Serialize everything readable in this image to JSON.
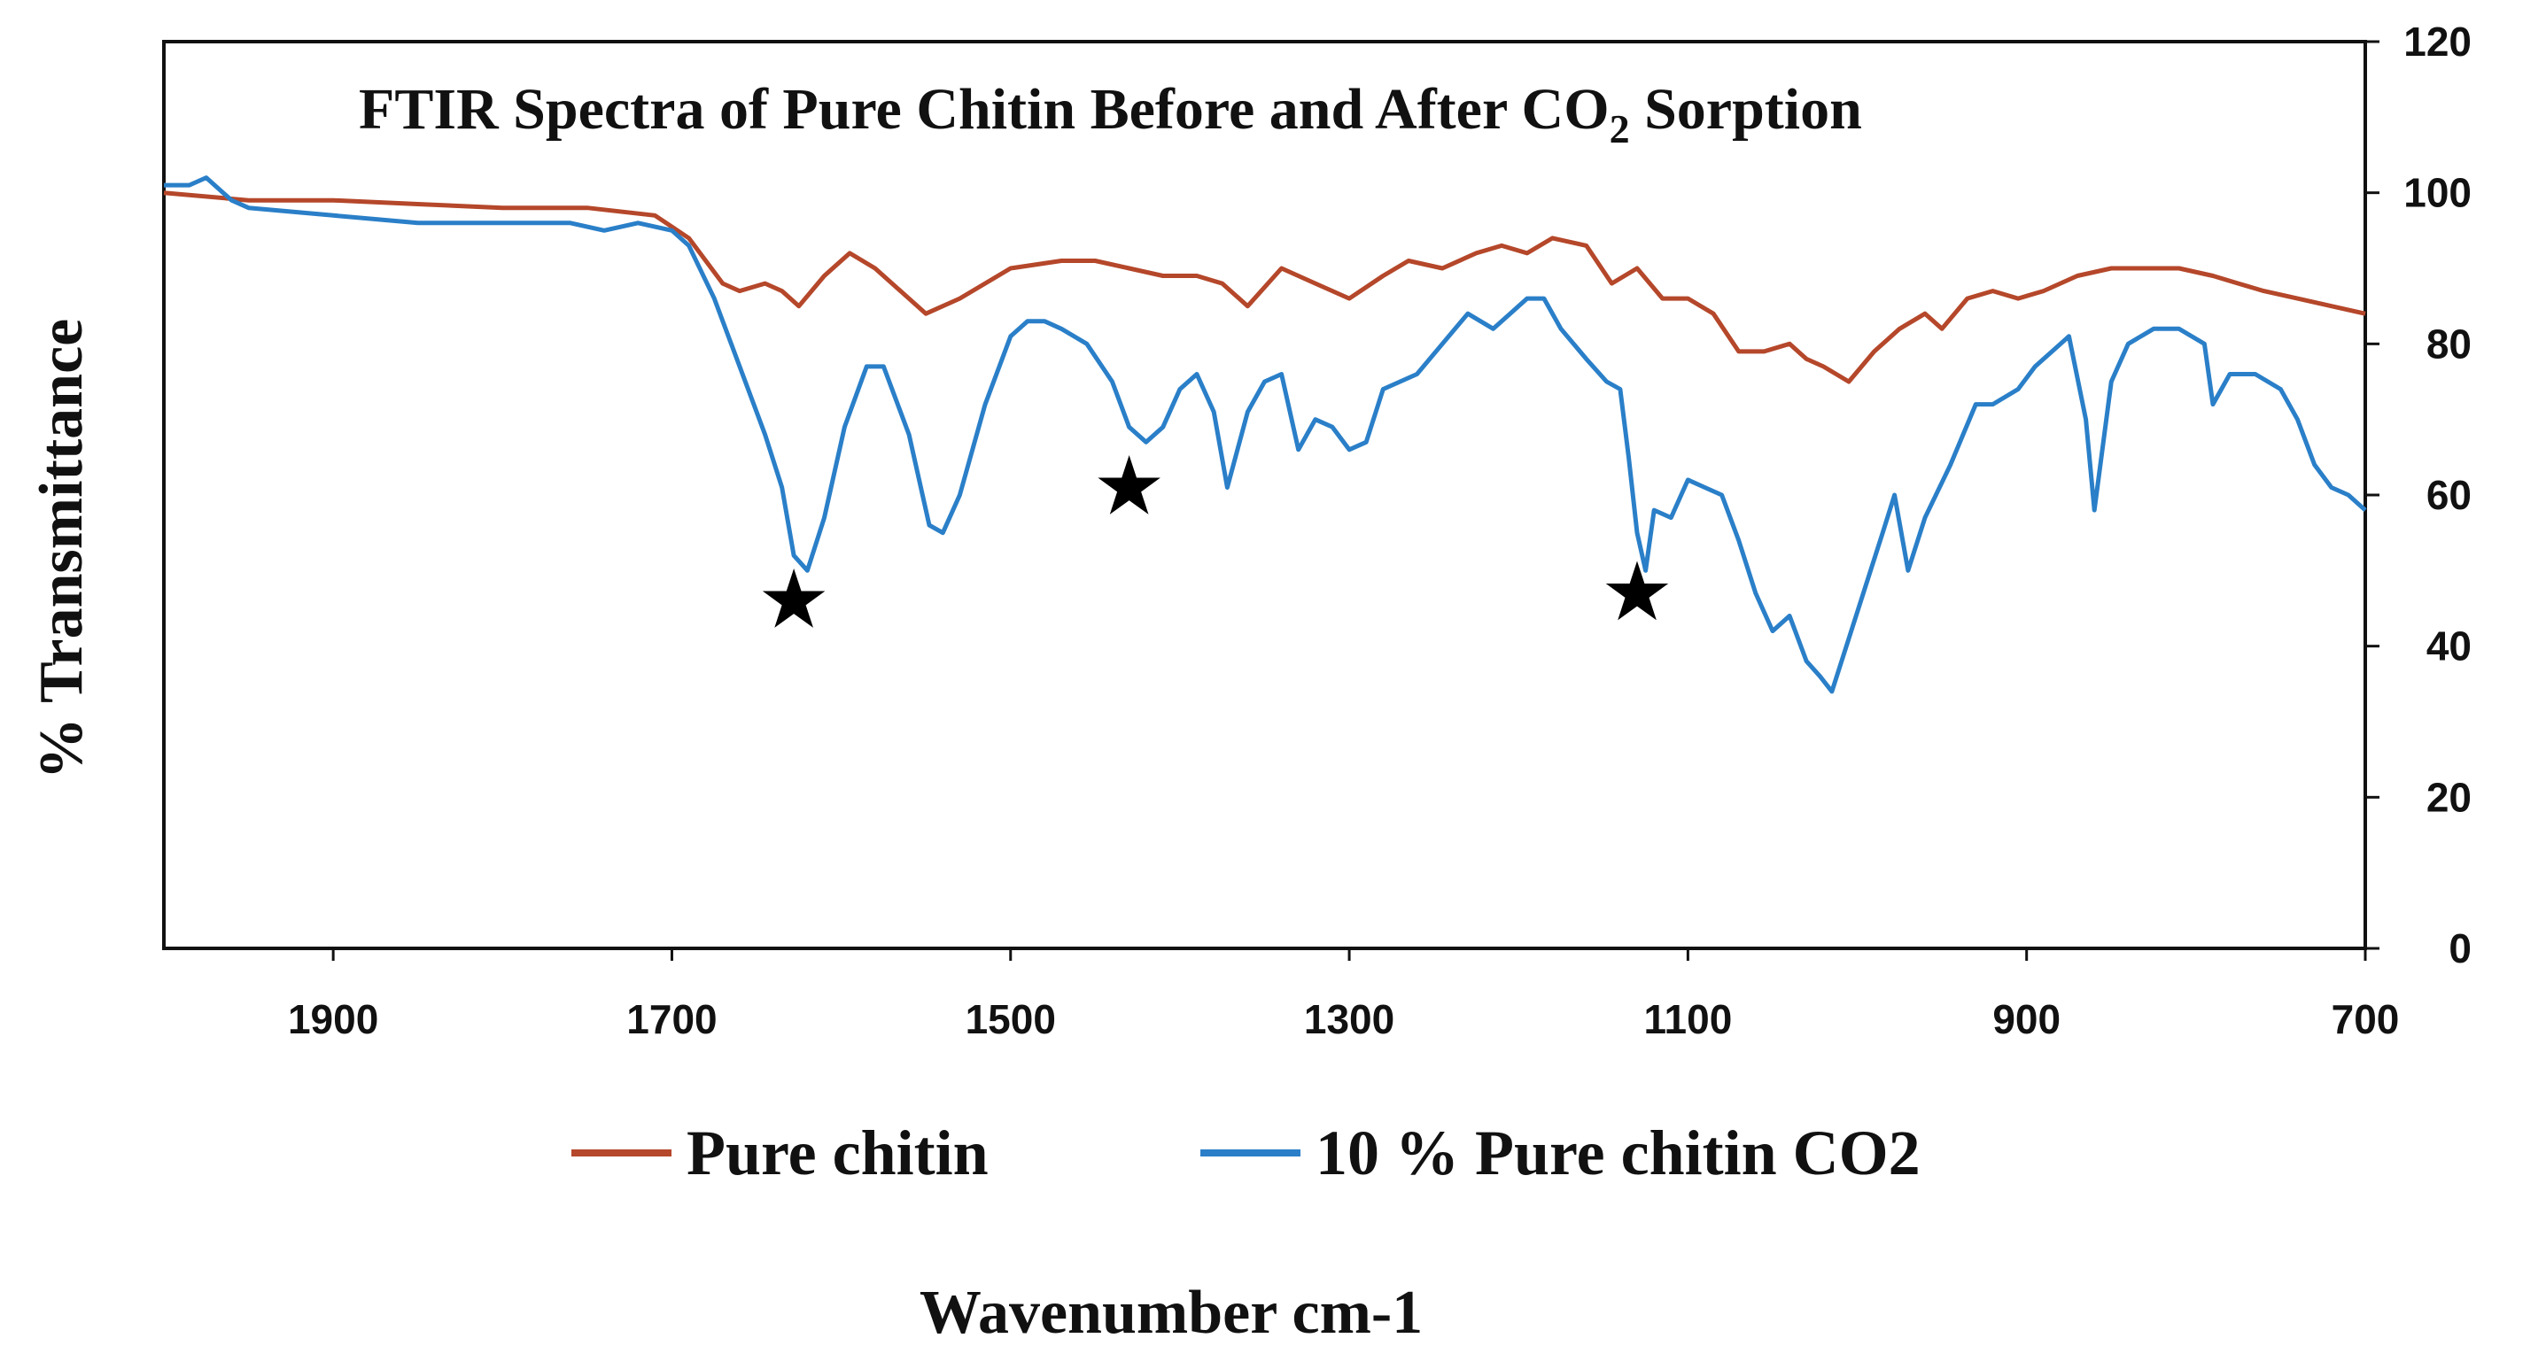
{
  "chart_data": {
    "type": "line",
    "title": "FTIR Spectra of Pure Chitin  Before and After CO",
    "title_subscript": "2",
    "title_suffix": " Sorption",
    "xlabel": "Wavenumber cm-1",
    "ylabel": "% Transmittance",
    "xlim": [
      2000,
      700
    ],
    "ylim": [
      0,
      120
    ],
    "x_ticks": [
      1900,
      1700,
      1500,
      1300,
      1100,
      900,
      700
    ],
    "y_ticks": [
      0,
      20,
      40,
      60,
      80,
      100,
      120
    ],
    "y_axis_side": "right",
    "grid": false,
    "legend_position": "bottom",
    "colors": {
      "pure_chitin": "#b5472a",
      "co2": "#2a7fc8",
      "axis": "#111111"
    },
    "series": [
      {
        "name": "Pure chitin",
        "color": "#b5472a",
        "x": [
          2000,
          1950,
          1900,
          1850,
          1800,
          1750,
          1710,
          1690,
          1670,
          1660,
          1645,
          1635,
          1625,
          1610,
          1595,
          1580,
          1565,
          1550,
          1530,
          1500,
          1470,
          1450,
          1430,
          1410,
          1390,
          1375,
          1360,
          1340,
          1320,
          1300,
          1280,
          1265,
          1245,
          1225,
          1210,
          1195,
          1180,
          1160,
          1145,
          1130,
          1115,
          1100,
          1085,
          1070,
          1055,
          1040,
          1030,
          1020,
          1005,
          990,
          975,
          960,
          950,
          935,
          920,
          905,
          890,
          870,
          850,
          830,
          810,
          790,
          775,
          760,
          740,
          720,
          700
        ],
        "y": [
          100,
          99,
          99,
          98.5,
          98,
          98,
          97,
          94,
          88,
          87,
          88,
          87,
          85,
          89,
          92,
          90,
          87,
          84,
          86,
          90,
          91,
          91,
          90,
          89,
          89,
          88,
          85,
          90,
          88,
          86,
          89,
          91,
          90,
          92,
          93,
          92,
          94,
          93,
          88,
          90,
          86,
          86,
          84,
          79,
          79,
          80,
          78,
          77,
          75,
          79,
          82,
          84,
          82,
          86,
          87,
          86,
          87,
          89,
          90,
          90,
          90,
          89,
          88,
          87,
          86,
          85,
          84
        ]
      },
      {
        "name": "10 % Pure chitin CO2",
        "color": "#2a7fc8",
        "x": [
          2000,
          1985,
          1975,
          1965,
          1960,
          1950,
          1900,
          1850,
          1800,
          1760,
          1740,
          1720,
          1700,
          1690,
          1675,
          1665,
          1655,
          1645,
          1635,
          1628,
          1620,
          1610,
          1598,
          1585,
          1575,
          1560,
          1548,
          1540,
          1530,
          1515,
          1500,
          1490,
          1480,
          1470,
          1455,
          1440,
          1430,
          1420,
          1410,
          1400,
          1390,
          1380,
          1372,
          1360,
          1350,
          1340,
          1330,
          1320,
          1310,
          1300,
          1290,
          1280,
          1270,
          1260,
          1245,
          1230,
          1215,
          1205,
          1195,
          1185,
          1175,
          1160,
          1148,
          1140,
          1135,
          1130,
          1125,
          1120,
          1110,
          1100,
          1090,
          1080,
          1070,
          1060,
          1050,
          1040,
          1030,
          1022,
          1015,
          1005,
          995,
          985,
          978,
          970,
          960,
          945,
          930,
          920,
          905,
          895,
          885,
          875,
          865,
          860,
          850,
          840,
          825,
          810,
          795,
          790,
          780,
          765,
          750,
          740,
          730,
          720,
          710,
          700
        ],
        "y": [
          101,
          101,
          102,
          100,
          99,
          98,
          97,
          96,
          96,
          96,
          95,
          96,
          95,
          93,
          86,
          80,
          74,
          68,
          61,
          52,
          50,
          57,
          69,
          77,
          77,
          68,
          56,
          55,
          60,
          72,
          81,
          83,
          83,
          82,
          80,
          75,
          69,
          67,
          69,
          74,
          76,
          71,
          61,
          71,
          75,
          76,
          66,
          70,
          69,
          66,
          67,
          74,
          75,
          76,
          80,
          84,
          82,
          84,
          86,
          86,
          82,
          78,
          75,
          74,
          65,
          55,
          50,
          58,
          57,
          62,
          61,
          60,
          54,
          47,
          42,
          44,
          38,
          36,
          34,
          41,
          48,
          55,
          60,
          50,
          57,
          64,
          72,
          72,
          74,
          77,
          79,
          81,
          70,
          58,
          75,
          80,
          82,
          82,
          80,
          72,
          76,
          76,
          74,
          70,
          64,
          61,
          60,
          58
        ]
      }
    ],
    "annotations": [
      {
        "marker": "★",
        "x": 1628,
        "y": 46
      },
      {
        "marker": "★",
        "x": 1430,
        "y": 61
      },
      {
        "marker": "★",
        "x": 1130,
        "y": 47
      }
    ]
  }
}
